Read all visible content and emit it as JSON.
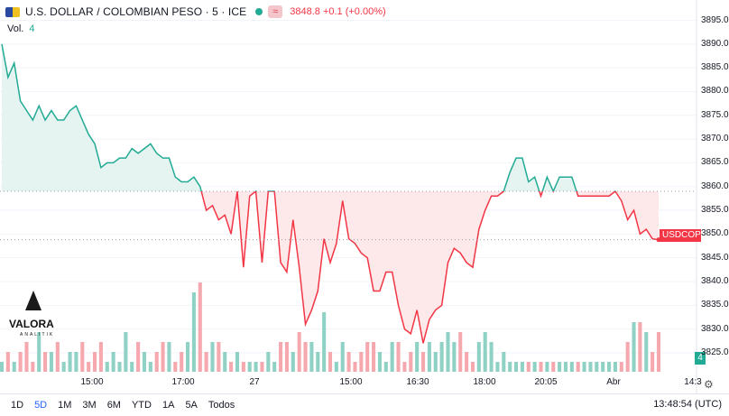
{
  "header": {
    "symbol": "U.S. DOLLAR / COLOMBIAN PESO · 5 · ICE",
    "tag": "≈",
    "quote": "3848.8  +0.1 (+0.00%)"
  },
  "volume_label": {
    "label": "Vol.",
    "value": "4"
  },
  "price_tag": {
    "symbol": "USDCOP",
    "value": "3848.8"
  },
  "volume_tag": "4",
  "logo": {
    "name": "VALORA",
    "sub": "ANALITIK"
  },
  "colors": {
    "up": "#22ab94",
    "down": "#f23645",
    "up_fill": "#e6f4f1",
    "down_fill": "#fde8ea"
  },
  "x_tick_labels": [
    "15:00",
    "17:00",
    "27",
    "15:00",
    "16:30",
    "18:00",
    "20:05",
    "Abr",
    "14:3"
  ],
  "bottom_bar": {
    "ranges": [
      "1D",
      "5D",
      "1M",
      "3M",
      "6M",
      "YTD",
      "1A",
      "5A",
      "Todos"
    ],
    "active_range": "5D",
    "clock": "13:48:54 (UTC)"
  },
  "chart_data": {
    "type": "area",
    "title": "U.S. DOLLAR / COLOMBIAN PESO · 5 · ICE",
    "baseline": 3859,
    "ylim": [
      3821,
      3897
    ],
    "y_ticks": [
      3825,
      3830,
      3835,
      3840,
      3845,
      3850,
      3855,
      3860,
      3865,
      3870,
      3875,
      3880,
      3885,
      3890,
      3895
    ],
    "grid": true,
    "x_tick_labels": [
      "15:00",
      "17:00",
      "27",
      "15:00",
      "16:30",
      "18:00",
      "20:05",
      "Abr",
      "14:3"
    ],
    "price": [
      3890,
      3883,
      3886,
      3878,
      3876,
      3874,
      3877,
      3874,
      3876,
      3874,
      3874,
      3876,
      3877,
      3874,
      3871,
      3869,
      3864,
      3865,
      3865,
      3866,
      3866,
      3868,
      3867,
      3868,
      3869,
      3867,
      3866,
      3866,
      3862,
      3861,
      3861,
      3862,
      3860,
      3855,
      3856,
      3853,
      3854,
      3850,
      3859,
      3843,
      3858,
      3859,
      3844,
      3859,
      3859,
      3844,
      3842,
      3853,
      3843,
      3831,
      3834,
      3838,
      3849,
      3844,
      3848,
      3857,
      3849,
      3848,
      3846,
      3845,
      3838,
      3838,
      3842,
      3842,
      3835,
      3830,
      3829,
      3834,
      3827,
      3832,
      3834,
      3835,
      3844,
      3847,
      3846,
      3844,
      3843,
      3851,
      3855,
      3858,
      3858,
      3859,
      3863,
      3866,
      3866,
      3861,
      3862,
      3858,
      3862,
      3859,
      3862,
      3862,
      3862,
      3858,
      3858,
      3858,
      3858,
      3858,
      3858,
      3859,
      3857,
      3853,
      3855,
      3850,
      3851,
      3849,
      3848.8
    ],
    "volume": [
      1,
      2,
      1,
      2,
      3,
      1,
      4,
      2,
      2,
      3,
      1,
      2,
      2,
      3,
      1,
      2,
      3,
      1,
      2,
      1,
      4,
      1,
      3,
      2,
      1,
      2,
      3,
      3,
      1,
      2,
      3,
      8,
      9,
      2,
      3,
      3,
      2,
      1,
      2,
      1,
      1,
      1,
      1,
      2,
      1,
      3,
      3,
      2,
      4,
      3,
      3,
      2,
      6,
      2,
      1,
      3,
      2,
      1,
      2,
      3,
      3,
      2,
      1,
      3,
      3,
      1,
      2,
      3,
      2,
      3,
      2,
      3,
      4,
      3,
      4,
      2,
      1,
      3,
      4,
      3,
      1,
      2,
      1,
      1,
      1,
      1,
      1,
      1,
      1,
      1,
      1,
      1,
      1,
      1,
      1,
      1,
      1,
      1,
      1,
      1,
      1,
      3,
      5,
      5,
      4,
      2,
      4
    ]
  }
}
